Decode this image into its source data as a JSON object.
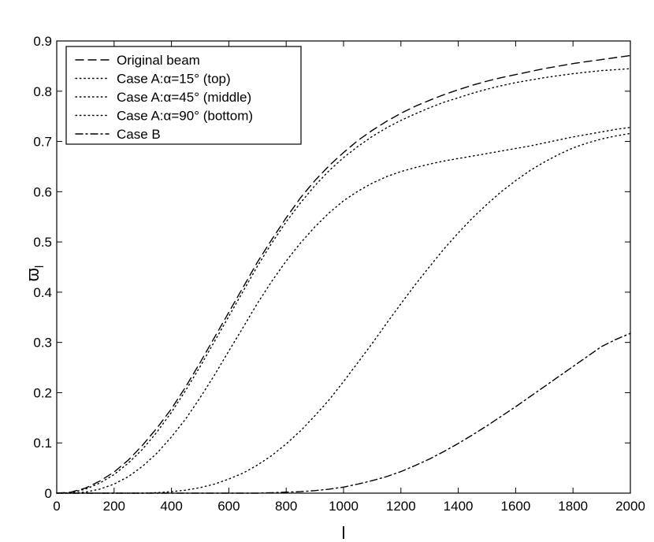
{
  "chart_data": {
    "type": "line",
    "xlabel": "l",
    "ylabel": "ϖ",
    "ylabel_sub": "l",
    "xlim": [
      0,
      2000
    ],
    "ylim": [
      0,
      0.9
    ],
    "xticks": [
      "0",
      "200",
      "400",
      "600",
      "800",
      "1000",
      "1200",
      "1400",
      "1600",
      "1800",
      "2000"
    ],
    "yticks": [
      "0",
      "0.1",
      "0.2",
      "0.3",
      "0.4",
      "0.5",
      "0.6",
      "0.7",
      "0.8",
      "0.9"
    ],
    "grid": false,
    "legend_position": "top-left",
    "x": [
      0,
      50,
      100,
      150,
      200,
      250,
      300,
      350,
      400,
      450,
      500,
      550,
      600,
      650,
      700,
      750,
      800,
      850,
      900,
      950,
      1000,
      1050,
      1100,
      1150,
      1200,
      1250,
      1300,
      1350,
      1400,
      1450,
      1500,
      1550,
      1600,
      1650,
      1700,
      1750,
      1800,
      1850,
      1900,
      1950,
      2000
    ],
    "series": [
      {
        "name": "Original beam",
        "style": "dashed",
        "values": [
          0,
          0.002,
          0.01,
          0.024,
          0.042,
          0.066,
          0.096,
          0.13,
          0.168,
          0.212,
          0.26,
          0.31,
          0.36,
          0.41,
          0.46,
          0.505,
          0.548,
          0.588,
          0.622,
          0.652,
          0.678,
          0.702,
          0.722,
          0.74,
          0.756,
          0.77,
          0.782,
          0.793,
          0.803,
          0.812,
          0.82,
          0.827,
          0.833,
          0.839,
          0.845,
          0.85,
          0.855,
          0.859,
          0.863,
          0.867,
          0.871
        ]
      },
      {
        "name": "Case A:α=15° (top)",
        "style": "dotted",
        "values": [
          0,
          0.001,
          0.008,
          0.02,
          0.037,
          0.06,
          0.088,
          0.122,
          0.161,
          0.205,
          0.252,
          0.302,
          0.352,
          0.402,
          0.452,
          0.498,
          0.54,
          0.578,
          0.612,
          0.642,
          0.668,
          0.69,
          0.71,
          0.727,
          0.742,
          0.755,
          0.767,
          0.778,
          0.787,
          0.796,
          0.804,
          0.811,
          0.817,
          0.822,
          0.827,
          0.831,
          0.835,
          0.838,
          0.841,
          0.843,
          0.845
        ]
      },
      {
        "name": "Case A:α=45° (middle)",
        "style": "dotted",
        "values": [
          0,
          0,
          0.002,
          0.008,
          0.018,
          0.033,
          0.054,
          0.08,
          0.112,
          0.148,
          0.19,
          0.235,
          0.283,
          0.33,
          0.378,
          0.422,
          0.462,
          0.498,
          0.53,
          0.558,
          0.582,
          0.601,
          0.617,
          0.63,
          0.64,
          0.648,
          0.655,
          0.661,
          0.666,
          0.671,
          0.676,
          0.681,
          0.686,
          0.691,
          0.697,
          0.703,
          0.709,
          0.714,
          0.719,
          0.724,
          0.728
        ]
      },
      {
        "name": "Case A:α=90° (bottom)",
        "style": "dotted",
        "values": [
          0,
          0,
          0,
          0,
          0,
          0,
          0,
          0.001,
          0.003,
          0.006,
          0.011,
          0.018,
          0.028,
          0.04,
          0.056,
          0.075,
          0.098,
          0.124,
          0.154,
          0.186,
          0.222,
          0.26,
          0.298,
          0.338,
          0.377,
          0.415,
          0.451,
          0.486,
          0.518,
          0.548,
          0.575,
          0.6,
          0.622,
          0.642,
          0.659,
          0.674,
          0.687,
          0.697,
          0.705,
          0.711,
          0.716
        ]
      },
      {
        "name": "Case B",
        "style": "dashdot",
        "values": [
          0,
          0,
          0,
          0,
          0,
          0,
          0,
          0,
          0,
          0,
          0,
          0,
          0,
          0,
          0,
          0.001,
          0.002,
          0.003,
          0.005,
          0.008,
          0.012,
          0.018,
          0.025,
          0.033,
          0.043,
          0.055,
          0.068,
          0.083,
          0.099,
          0.116,
          0.134,
          0.153,
          0.172,
          0.192,
          0.212,
          0.232,
          0.252,
          0.272,
          0.292,
          0.306,
          0.318
        ]
      }
    ]
  }
}
